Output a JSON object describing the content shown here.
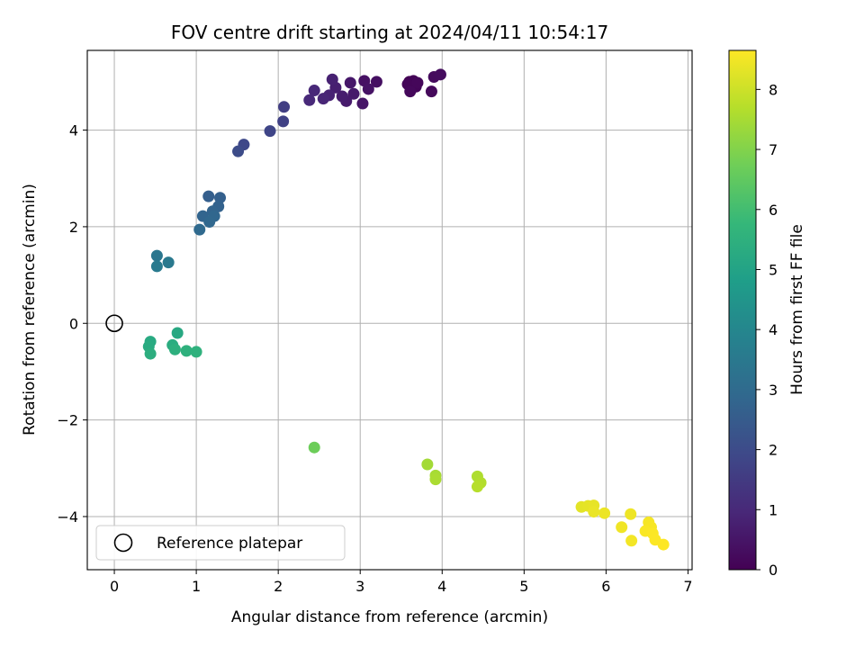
{
  "chart_data": {
    "type": "scatter",
    "title": "FOV centre drift starting at 2024/04/11 10:54:17",
    "xlabel": "Angular distance from reference (arcmin)",
    "ylabel": "Rotation from reference (arcmin)",
    "xlim": [
      -0.33,
      7.05
    ],
    "ylim": [
      -5.1,
      5.65
    ],
    "xticks": [
      0,
      1,
      2,
      3,
      4,
      5,
      6,
      7
    ],
    "yticks": [
      -4,
      -2,
      0,
      2,
      4
    ],
    "grid": true,
    "legend": {
      "placement": "lower-left",
      "entries": [
        "Reference platepar"
      ]
    },
    "reference_point": {
      "x": 0,
      "y": 0
    },
    "colorbar": {
      "label": "Hours from first FF file",
      "colormap": "viridis",
      "range": [
        0,
        8.65
      ],
      "ticks": [
        0,
        1,
        2,
        3,
        4,
        5,
        6,
        7,
        8
      ]
    },
    "colormap_stops": [
      "#440154",
      "#482878",
      "#3e4989",
      "#31688e",
      "#26828e",
      "#1f9e89",
      "#35b779",
      "#6ece58",
      "#b5de2b",
      "#fde725"
    ],
    "points": [
      {
        "x": 3.6,
        "y": 5.0,
        "t": 0.0
      },
      {
        "x": 3.62,
        "y": 4.85,
        "t": 0.05
      },
      {
        "x": 3.65,
        "y": 5.02,
        "t": 0.08
      },
      {
        "x": 3.68,
        "y": 4.9,
        "t": 0.1
      },
      {
        "x": 3.58,
        "y": 4.95,
        "t": 0.12
      },
      {
        "x": 3.7,
        "y": 4.98,
        "t": 0.15
      },
      {
        "x": 3.61,
        "y": 4.8,
        "t": 0.18
      },
      {
        "x": 3.87,
        "y": 4.8,
        "t": 0.2
      },
      {
        "x": 3.9,
        "y": 5.1,
        "t": 0.25
      },
      {
        "x": 3.98,
        "y": 5.15,
        "t": 0.28
      },
      {
        "x": 3.2,
        "y": 5.0,
        "t": 0.35
      },
      {
        "x": 3.05,
        "y": 5.02,
        "t": 0.4
      },
      {
        "x": 3.1,
        "y": 4.85,
        "t": 0.45
      },
      {
        "x": 3.03,
        "y": 4.55,
        "t": 0.5
      },
      {
        "x": 2.88,
        "y": 4.98,
        "t": 0.55
      },
      {
        "x": 2.92,
        "y": 4.75,
        "t": 0.6
      },
      {
        "x": 2.83,
        "y": 4.6,
        "t": 0.65
      },
      {
        "x": 2.78,
        "y": 4.7,
        "t": 0.7
      },
      {
        "x": 2.7,
        "y": 4.88,
        "t": 0.75
      },
      {
        "x": 2.66,
        "y": 5.05,
        "t": 0.8
      },
      {
        "x": 2.62,
        "y": 4.72,
        "t": 0.85
      },
      {
        "x": 2.55,
        "y": 4.65,
        "t": 0.9
      },
      {
        "x": 2.44,
        "y": 4.82,
        "t": 0.95
      },
      {
        "x": 2.38,
        "y": 4.62,
        "t": 1.0
      },
      {
        "x": 2.07,
        "y": 4.48,
        "t": 1.6
      },
      {
        "x": 2.06,
        "y": 4.18,
        "t": 1.7
      },
      {
        "x": 1.9,
        "y": 3.98,
        "t": 1.8
      },
      {
        "x": 1.58,
        "y": 3.7,
        "t": 1.9
      },
      {
        "x": 1.51,
        "y": 3.56,
        "t": 2.0
      },
      {
        "x": 1.15,
        "y": 2.63,
        "t": 2.6
      },
      {
        "x": 1.29,
        "y": 2.6,
        "t": 2.65
      },
      {
        "x": 1.27,
        "y": 2.42,
        "t": 2.7
      },
      {
        "x": 1.2,
        "y": 2.32,
        "t": 2.75
      },
      {
        "x": 1.08,
        "y": 2.22,
        "t": 2.8
      },
      {
        "x": 1.22,
        "y": 2.22,
        "t": 2.85
      },
      {
        "x": 1.16,
        "y": 2.1,
        "t": 2.9
      },
      {
        "x": 1.04,
        "y": 1.94,
        "t": 2.95
      },
      {
        "x": 0.52,
        "y": 1.4,
        "t": 3.4
      },
      {
        "x": 0.66,
        "y": 1.26,
        "t": 3.5
      },
      {
        "x": 0.52,
        "y": 1.18,
        "t": 3.55
      },
      {
        "x": 0.77,
        "y": -0.2,
        "t": 5.2
      },
      {
        "x": 0.44,
        "y": -0.38,
        "t": 5.25
      },
      {
        "x": 0.42,
        "y": -0.48,
        "t": 5.3
      },
      {
        "x": 0.71,
        "y": -0.45,
        "t": 5.35
      },
      {
        "x": 0.44,
        "y": -0.63,
        "t": 5.4
      },
      {
        "x": 0.74,
        "y": -0.54,
        "t": 5.45
      },
      {
        "x": 0.88,
        "y": -0.57,
        "t": 5.5
      },
      {
        "x": 1.0,
        "y": -0.59,
        "t": 5.55
      },
      {
        "x": 2.44,
        "y": -2.57,
        "t": 6.7
      },
      {
        "x": 3.82,
        "y": -2.92,
        "t": 7.45
      },
      {
        "x": 3.92,
        "y": -3.15,
        "t": 7.5
      },
      {
        "x": 3.92,
        "y": -3.23,
        "t": 7.55
      },
      {
        "x": 4.43,
        "y": -3.17,
        "t": 7.6
      },
      {
        "x": 4.47,
        "y": -3.3,
        "t": 7.65
      },
      {
        "x": 4.43,
        "y": -3.38,
        "t": 7.7
      },
      {
        "x": 5.7,
        "y": -3.8,
        "t": 8.3
      },
      {
        "x": 5.78,
        "y": -3.78,
        "t": 8.33
      },
      {
        "x": 5.85,
        "y": -3.77,
        "t": 8.36
      },
      {
        "x": 5.85,
        "y": -3.9,
        "t": 8.39
      },
      {
        "x": 5.98,
        "y": -3.93,
        "t": 8.42
      },
      {
        "x": 6.3,
        "y": -3.95,
        "t": 8.45
      },
      {
        "x": 6.19,
        "y": -4.22,
        "t": 8.48
      },
      {
        "x": 6.31,
        "y": -4.5,
        "t": 8.51
      },
      {
        "x": 6.52,
        "y": -4.12,
        "t": 8.54
      },
      {
        "x": 6.55,
        "y": -4.22,
        "t": 8.57
      },
      {
        "x": 6.48,
        "y": -4.3,
        "t": 8.6
      },
      {
        "x": 6.57,
        "y": -4.35,
        "t": 8.62
      },
      {
        "x": 6.6,
        "y": -4.48,
        "t": 8.64
      },
      {
        "x": 6.7,
        "y": -4.58,
        "t": 8.65
      }
    ]
  }
}
